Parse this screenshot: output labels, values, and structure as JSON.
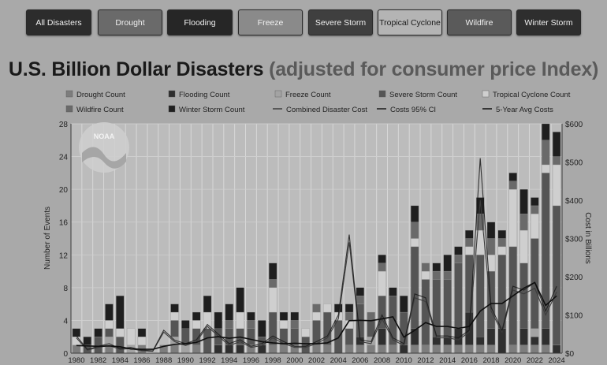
{
  "filters": [
    {
      "label": "All Disasters",
      "color": "#2c2c2c"
    },
    {
      "label": "Drought",
      "color": "#6a6a6a"
    },
    {
      "label": "Flooding",
      "color": "#262626"
    },
    {
      "label": "Freeze",
      "color": "#8a8a8a"
    },
    {
      "label": "Severe Storm",
      "color": "#3f3f3f"
    },
    {
      "label": "Tropical Cyclone",
      "color": "#b4b4b4"
    },
    {
      "label": "Wildfire",
      "color": "#5a5a5a"
    },
    {
      "label": "Winter Storm",
      "color": "#2e2e2e"
    }
  ],
  "title": {
    "main": "U.S. Billion Dollar Disasters",
    "paren": "(adjusted for consumer price Index)"
  },
  "chart_data": {
    "type": "bar",
    "stacked": true,
    "x": [
      1980,
      1981,
      1982,
      1983,
      1984,
      1985,
      1986,
      1987,
      1988,
      1989,
      1990,
      1991,
      1992,
      1993,
      1994,
      1995,
      1996,
      1997,
      1998,
      1999,
      2000,
      2001,
      2002,
      2003,
      2004,
      2005,
      2006,
      2007,
      2008,
      2009,
      2010,
      2011,
      2012,
      2013,
      2014,
      2015,
      2016,
      2017,
      2018,
      2019,
      2020,
      2021,
      2022,
      2023,
      2024
    ],
    "x_tick_labels": [
      "1980",
      "1982",
      "1984",
      "1986",
      "1988",
      "1990",
      "1992",
      "1994",
      "1996",
      "1998",
      "2000",
      "2002",
      "2004",
      "2006",
      "2008",
      "2010",
      "2012",
      "2014",
      "2016",
      "2018",
      "2020",
      "2022",
      "2024"
    ],
    "ylabel": "Number of Events",
    "ylim": [
      0,
      28
    ],
    "yticks": [
      0,
      4,
      8,
      12,
      16,
      20,
      24,
      28
    ],
    "y2label": "Cost in Billions",
    "y2lim": [
      0,
      600
    ],
    "y2ticks": [
      "$0",
      "$100",
      "$200",
      "$300",
      "$400",
      "$500",
      "$600"
    ],
    "grid": true,
    "legend_position": "top",
    "series": [
      {
        "name": "Drought Count",
        "color": "#7d7d7d",
        "values": [
          1,
          0,
          0,
          1,
          0,
          0,
          1,
          0,
          1,
          1,
          0,
          1,
          0,
          0,
          0,
          0,
          1,
          0,
          1,
          1,
          1,
          0,
          1,
          1,
          0,
          1,
          1,
          1,
          1,
          1,
          0,
          1,
          1,
          1,
          1,
          1,
          1,
          1,
          1,
          0,
          1,
          1,
          1,
          1,
          0
        ]
      },
      {
        "name": "Flooding Count",
        "color": "#2f2f2f",
        "values": [
          0,
          0,
          0,
          0,
          0,
          0,
          0,
          0,
          0,
          0,
          0,
          0,
          0,
          1,
          1,
          1,
          0,
          1,
          0,
          0,
          0,
          0,
          0,
          0,
          0,
          0,
          1,
          0,
          2,
          0,
          1,
          2,
          0,
          1,
          1,
          2,
          4,
          1,
          2,
          3,
          0,
          2,
          1,
          2,
          1
        ]
      },
      {
        "name": "Freeze Count",
        "color": "#a3a3a3",
        "values": [
          0,
          0,
          0,
          1,
          0,
          1,
          0,
          0,
          0,
          1,
          1,
          0,
          0,
          0,
          0,
          0,
          0,
          0,
          0,
          0,
          0,
          0,
          0,
          0,
          0,
          0,
          0,
          1,
          0,
          0,
          0,
          0,
          0,
          0,
          0,
          0,
          0,
          0,
          0,
          0,
          0,
          0,
          1,
          0,
          0
        ]
      },
      {
        "name": "Severe Storm Count",
        "color": "#555555",
        "values": [
          0,
          1,
          2,
          1,
          2,
          0,
          0,
          0,
          0,
          2,
          2,
          2,
          3,
          2,
          2,
          2,
          2,
          1,
          4,
          2,
          2,
          2,
          3,
          4,
          4,
          2,
          4,
          2,
          4,
          6,
          4,
          10,
          8,
          7,
          7,
          8,
          7,
          10,
          7,
          9,
          12,
          8,
          11,
          19,
          17
        ]
      },
      {
        "name": "Tropical Cyclone Count",
        "color": "#cfcfcf",
        "values": [
          1,
          0,
          0,
          1,
          1,
          2,
          1,
          0,
          0,
          1,
          0,
          1,
          2,
          0,
          0,
          2,
          0,
          0,
          3,
          1,
          0,
          1,
          1,
          1,
          1,
          1,
          0,
          0,
          3,
          0,
          0,
          1,
          1,
          0,
          0,
          0,
          1,
          3,
          2,
          1,
          7,
          4,
          3,
          1,
          5
        ]
      },
      {
        "name": "Wildfire Count",
        "color": "#6a6a6a",
        "values": [
          0,
          0,
          0,
          0,
          0,
          0,
          0,
          0,
          0,
          0,
          0,
          0,
          0,
          0,
          1,
          0,
          1,
          0,
          1,
          0,
          1,
          0,
          1,
          0,
          0,
          1,
          1,
          1,
          1,
          0,
          0,
          2,
          1,
          1,
          1,
          1,
          1,
          2,
          2,
          1,
          1,
          2,
          1,
          3,
          1
        ]
      },
      {
        "name": "Winter Storm Count",
        "color": "#1f1f1f",
        "values": [
          1,
          1,
          1,
          2,
          4,
          0,
          1,
          0,
          0,
          1,
          1,
          1,
          2,
          2,
          2,
          3,
          1,
          2,
          2,
          1,
          1,
          0,
          0,
          0,
          1,
          1,
          1,
          0,
          1,
          1,
          2,
          2,
          0,
          1,
          2,
          1,
          1,
          2,
          2,
          1,
          1,
          3,
          1,
          2,
          3
        ]
      }
    ],
    "lines": [
      {
        "name": "Combined Disaster Cost",
        "color": "#3c3c3c",
        "values": [
          40,
          8,
          15,
          20,
          10,
          12,
          6,
          5,
          55,
          30,
          20,
          30,
          70,
          45,
          20,
          30,
          15,
          20,
          40,
          25,
          15,
          15,
          25,
          40,
          90,
          290,
          30,
          25,
          90,
          35,
          20,
          145,
          135,
          40,
          40,
          35,
          55,
          400,
          110,
          55,
          165,
          155,
          170,
          100,
          160
        ]
      },
      {
        "name": "Costs 95% CI",
        "color": "#1a1a1a",
        "values": [
          45,
          10,
          18,
          25,
          12,
          15,
          8,
          6,
          60,
          34,
          25,
          35,
          75,
          50,
          25,
          35,
          18,
          25,
          45,
          30,
          18,
          18,
          30,
          45,
          100,
          310,
          35,
          30,
          100,
          40,
          25,
          155,
          145,
          45,
          45,
          40,
          60,
          510,
          120,
          60,
          175,
          165,
          185,
          110,
          175
        ]
      },
      {
        "name": "5-Year Avg Costs",
        "color": "#0f0f0f",
        "values": [
          20,
          19,
          18,
          19,
          17,
          11,
          10,
          10,
          18,
          23,
          25,
          28,
          40,
          43,
          39,
          42,
          36,
          30,
          27,
          25,
          26,
          25,
          25,
          27,
          40,
          85,
          86,
          85,
          90,
          95,
          42,
          60,
          80,
          70,
          70,
          65,
          70,
          110,
          130,
          130,
          150,
          170,
          185,
          125,
          150
        ]
      }
    ]
  }
}
